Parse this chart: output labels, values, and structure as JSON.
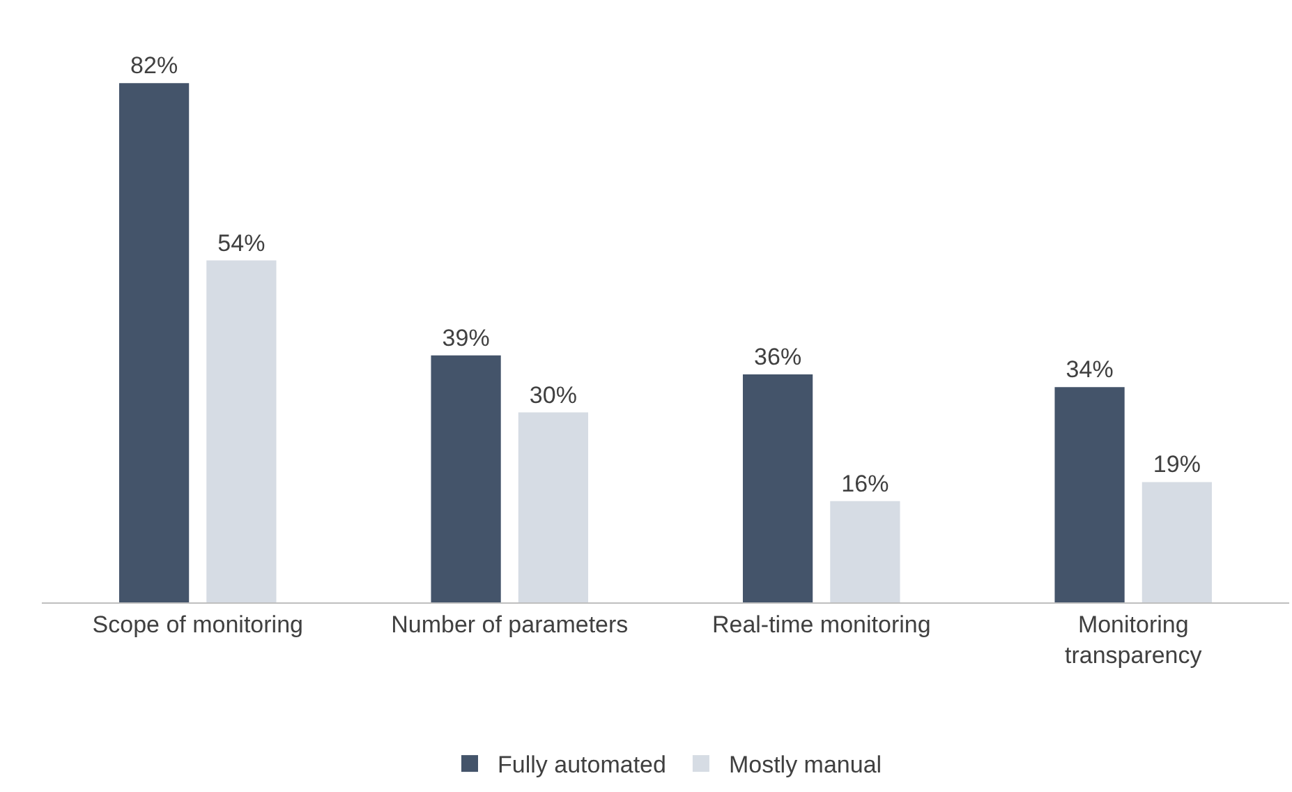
{
  "chart_data": {
    "type": "bar",
    "categories": [
      "Scope of monitoring",
      "Number of parameters",
      "Real-time monitoring",
      "Monitoring\ntransparency"
    ],
    "series": [
      {
        "name": "Fully automated",
        "color": "#44546a",
        "values": [
          82,
          39,
          36,
          34
        ],
        "value_labels": [
          "82%",
          "39%",
          "36%",
          "34%"
        ]
      },
      {
        "name": "Mostly manual",
        "color": "#d6dce4",
        "values": [
          54,
          30,
          16,
          19
        ],
        "value_labels": [
          "54%",
          "30%",
          "16%",
          "19%"
        ]
      }
    ],
    "legend": "bottom"
  }
}
